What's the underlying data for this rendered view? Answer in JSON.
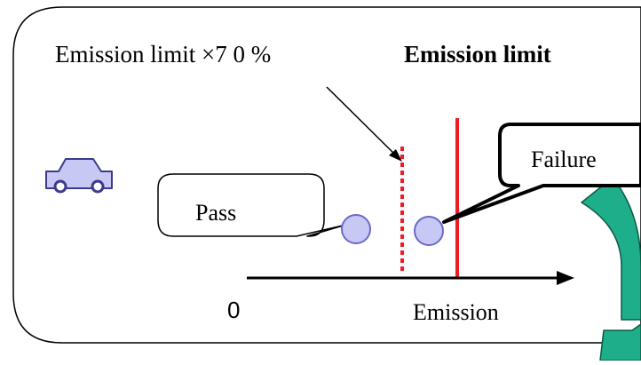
{
  "diagram": {
    "limit_70_label": "Emission limit ×7 0 %",
    "limit_label": "Emission limit",
    "pass_label": "Pass",
    "failure_label": "Failure",
    "axis_origin_label": "0",
    "axis_label": "Emission",
    "icons": [
      "car-icon",
      "axis-arrow",
      "recycle-arrow"
    ],
    "colors": {
      "limit_line": "#ee1c24",
      "limit_70_line": "#ee1c24",
      "circle_fill": "#c8c8f4",
      "circle_stroke": "#6a6ac8",
      "car_fill": "#c8c8f4",
      "arrow_fill": "#1fae8a"
    }
  }
}
